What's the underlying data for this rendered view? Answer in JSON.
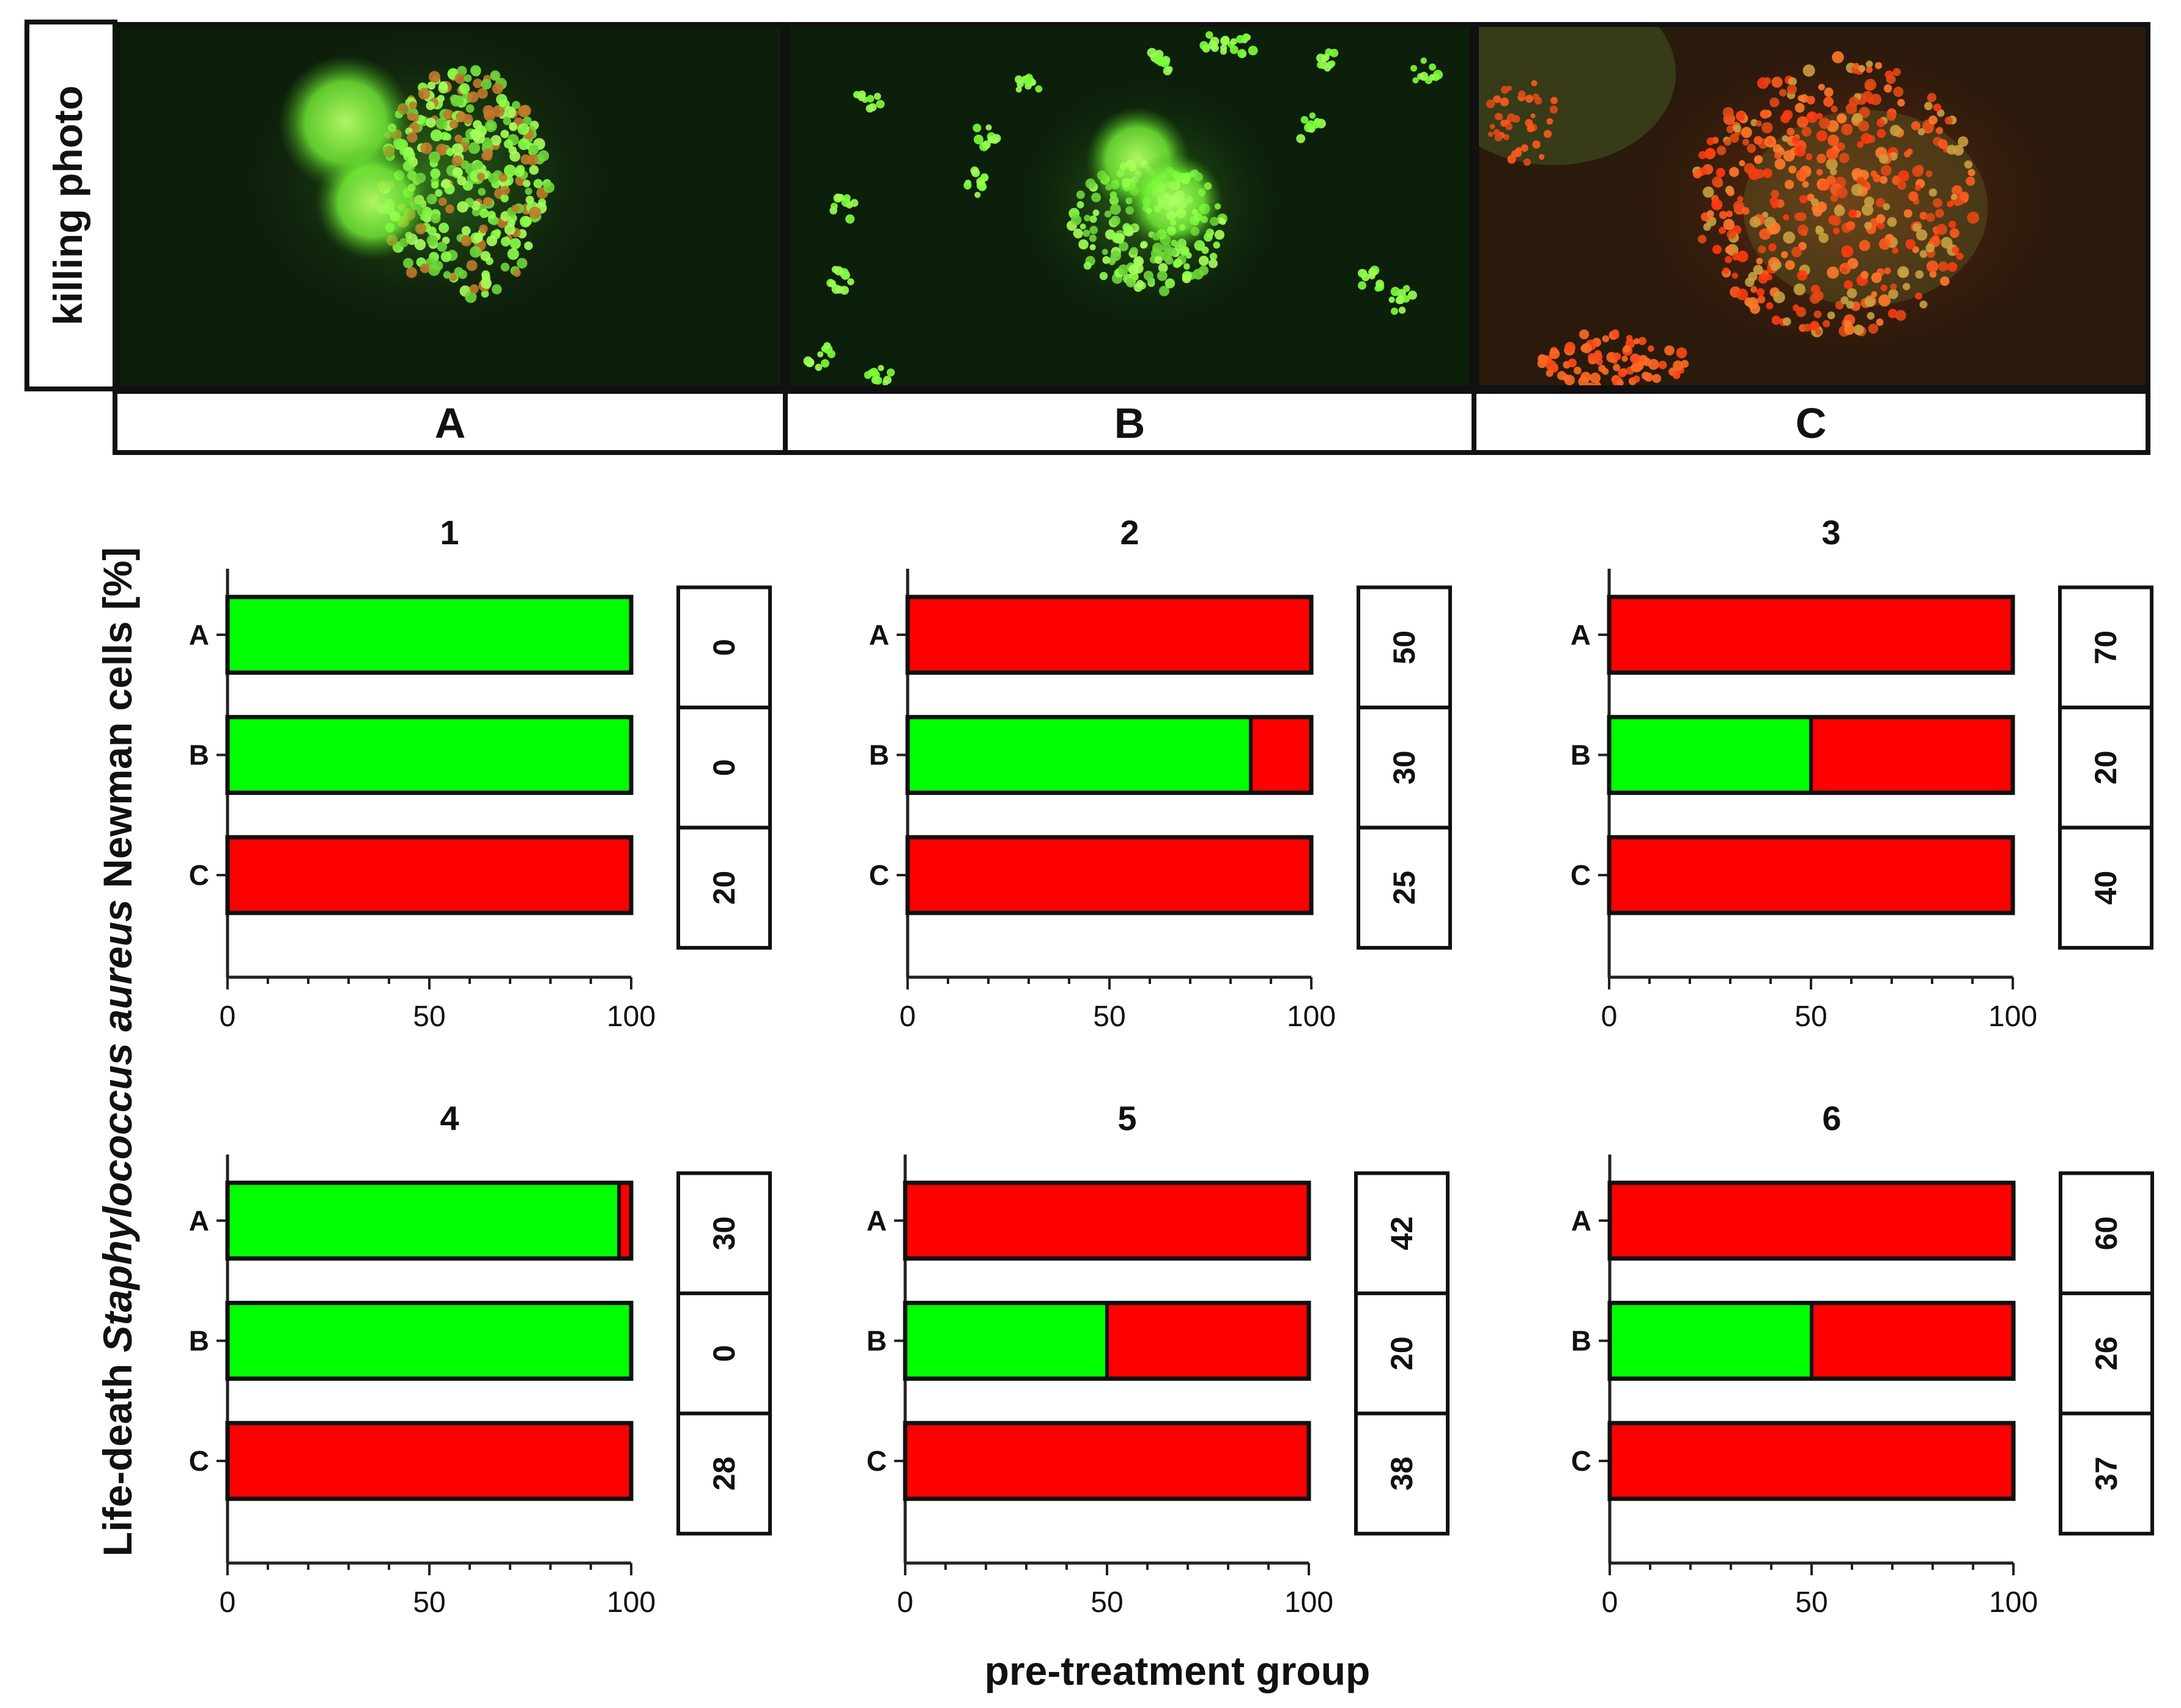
{
  "photo_strip": {
    "side_label": "killing photo",
    "panel_labels": [
      "A",
      "B",
      "C"
    ],
    "colors": {
      "dark_bg": "#0b1a09",
      "live": "#5cff3a",
      "dead": "#ff3a1a"
    }
  },
  "figure": {
    "ylabel_parts": [
      "Life-death ",
      "Staphylococcus aureus",
      " Newman cells [%]"
    ],
    "xlabel": "pre-treatment group"
  },
  "colors": {
    "live": "#00ff00",
    "dead": "#ff0000",
    "outline": "#111111",
    "axis": "#222222"
  },
  "chart_data": [
    {
      "type": "bar",
      "orientation": "horizontal",
      "stacked": true,
      "title": "1",
      "categories": [
        "A",
        "B",
        "C"
      ],
      "series": [
        {
          "values": [
            100,
            100,
            0
          ]
        },
        {
          "values": [
            0,
            0,
            100
          ]
        }
      ],
      "xlim": [
        0,
        100
      ],
      "xticks": [
        "0",
        "50",
        "100"
      ],
      "counts": [
        "0",
        "0",
        "20"
      ]
    },
    {
      "type": "bar",
      "orientation": "horizontal",
      "stacked": true,
      "title": "2",
      "categories": [
        "A",
        "B",
        "C"
      ],
      "series": [
        {
          "values": [
            0,
            85,
            0
          ]
        },
        {
          "values": [
            100,
            15,
            100
          ]
        }
      ],
      "xlim": [
        0,
        100
      ],
      "xticks": [
        "0",
        "50",
        "100"
      ],
      "counts": [
        "50",
        "30",
        "25"
      ]
    },
    {
      "type": "bar",
      "orientation": "horizontal",
      "stacked": true,
      "title": "3",
      "categories": [
        "A",
        "B",
        "C"
      ],
      "series": [
        {
          "values": [
            0,
            50,
            0
          ]
        },
        {
          "values": [
            100,
            50,
            100
          ]
        }
      ],
      "xlim": [
        0,
        100
      ],
      "xticks": [
        "0",
        "50",
        "100"
      ],
      "counts": [
        "70",
        "20",
        "40"
      ]
    },
    {
      "type": "bar",
      "orientation": "horizontal",
      "stacked": true,
      "title": "4",
      "categories": [
        "A",
        "B",
        "C"
      ],
      "series": [
        {
          "values": [
            97,
            100,
            0
          ]
        },
        {
          "values": [
            3,
            0,
            100
          ]
        }
      ],
      "xlim": [
        0,
        100
      ],
      "xticks": [
        "0",
        "50",
        "100"
      ],
      "counts": [
        "30",
        "0",
        "28"
      ]
    },
    {
      "type": "bar",
      "orientation": "horizontal",
      "stacked": true,
      "title": "5",
      "categories": [
        "A",
        "B",
        "C"
      ],
      "series": [
        {
          "values": [
            0,
            50,
            0
          ]
        },
        {
          "values": [
            100,
            50,
            100
          ]
        }
      ],
      "xlim": [
        0,
        100
      ],
      "xticks": [
        "0",
        "50",
        "100"
      ],
      "counts": [
        "42",
        "20",
        "38"
      ]
    },
    {
      "type": "bar",
      "orientation": "horizontal",
      "stacked": true,
      "title": "6",
      "categories": [
        "A",
        "B",
        "C"
      ],
      "series": [
        {
          "values": [
            0,
            50,
            0
          ]
        },
        {
          "values": [
            100,
            50,
            100
          ]
        }
      ],
      "xlim": [
        0,
        100
      ],
      "xticks": [
        "0",
        "50",
        "100"
      ],
      "counts": [
        "60",
        "26",
        "37"
      ]
    }
  ]
}
